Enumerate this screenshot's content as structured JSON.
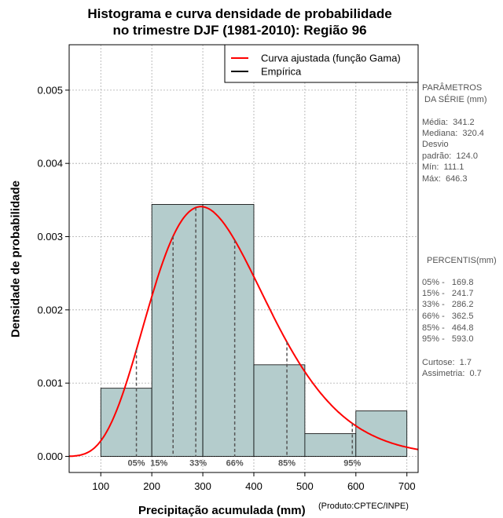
{
  "chart_data": {
    "type": "bar",
    "title_line1": "Histograma e curva densidade de probabilidade",
    "title_line2": "no trimestre DJF (1981-2010): Região 96",
    "xlabel": "Precipitação acumulada (mm)",
    "ylabel": "Densidade de probabilidade",
    "product_note": "(Produto:CPTEC/INPE)",
    "xlim": [
      38,
      722
    ],
    "ylim": [
      -0.00022,
      0.00562
    ],
    "xticks": [
      100,
      200,
      300,
      400,
      500,
      600,
      700
    ],
    "yticks": [
      0.0,
      0.001,
      0.002,
      0.003,
      0.004,
      0.005
    ],
    "ytick_labels": [
      "0.000",
      "0.001",
      "0.002",
      "0.003",
      "0.004",
      "0.005"
    ],
    "grid": true,
    "bins": [
      {
        "from": 100,
        "to": 200,
        "density": 0.00093
      },
      {
        "from": 200,
        "to": 300,
        "density": 0.00344
      },
      {
        "from": 300,
        "to": 400,
        "density": 0.00344
      },
      {
        "from": 400,
        "to": 500,
        "density": 0.00125
      },
      {
        "from": 500,
        "to": 600,
        "density": 0.00031
      },
      {
        "from": 600,
        "to": 700,
        "density": 0.00062
      }
    ],
    "gamma_fit": {
      "shape": 7.57,
      "scale": 45.07
    },
    "legend": [
      {
        "label": "Curva ajustada (função Gama)",
        "color": "#ff0000"
      },
      {
        "label": "Empírica",
        "color": "#000000"
      }
    ],
    "percentile_marks": [
      {
        "label": "05%",
        "value": 169.8
      },
      {
        "label": "15%",
        "value": 241.7
      },
      {
        "label": "33%",
        "value": 286.2
      },
      {
        "label": "66%",
        "value": 362.5
      },
      {
        "label": "85%",
        "value": 464.8
      },
      {
        "label": "95%",
        "value": 593.0
      }
    ],
    "colors": {
      "bar_fill": "#b4cccc",
      "curve": "#ff0000",
      "grid": "#aaaaaa",
      "marker": "#555555"
    }
  },
  "side_panel": {
    "params_title_1": "PARÂMETROS",
    "params_title_2": " DA SÉRIE (mm)",
    "media": "Média:  341.2",
    "mediana": "Mediana:  320.4",
    "desvio_1": "Desvio",
    "desvio_2": "padrão:  124.0",
    "min": "Mín:  111.1",
    "max": "Máx:  646.3",
    "percentis_title": "PERCENTIS(mm)",
    "p05": "05% -   169.8",
    "p15": "15% -   241.7",
    "p33": "33% -   286.2",
    "p66": "66% -   362.5",
    "p85": "85% -   464.8",
    "p95": "95% -   593.0",
    "curtose": "Curtose:  1.7",
    "assimetria": "Assimetria:  0.7"
  }
}
